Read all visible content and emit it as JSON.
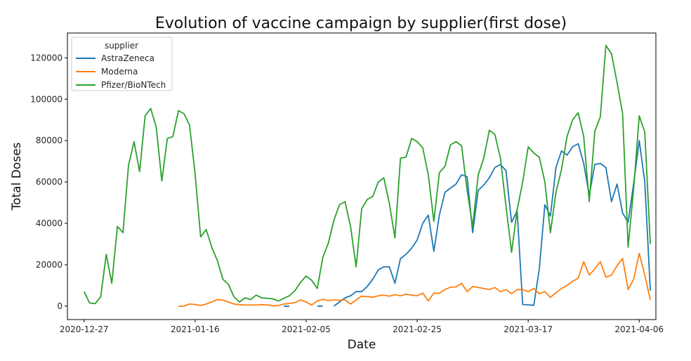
{
  "chart_data": {
    "type": "line",
    "title": "Evolution of vaccine campaign by supplier(first dose)",
    "xlabel": "Date",
    "ylabel": "Total Doses",
    "ylim": [
      -6500,
      132000
    ],
    "xlim": [
      "2020-12-24",
      "2021-04-09"
    ],
    "x_ticks": [
      "2020-12-27",
      "2021-01-16",
      "2021-02-05",
      "2021-02-25",
      "2021-03-17",
      "2021-04-06"
    ],
    "y_ticks": [
      0,
      20000,
      40000,
      60000,
      80000,
      100000,
      120000
    ],
    "grid": false,
    "legend": {
      "title": "supplier",
      "placement": "top-left"
    },
    "series": [
      {
        "name": "AstraZeneca",
        "color": "#1f77b4",
        "points": [
          [
            "2021-02-01",
            0
          ],
          [
            "2021-02-02",
            0
          ],
          [
            "2021-02-07",
            0
          ],
          [
            "2021-02-08",
            0
          ],
          [
            "2021-02-10",
            0
          ],
          [
            "2021-02-11",
            2000
          ],
          [
            "2021-02-12",
            4000
          ],
          [
            "2021-02-13",
            5000
          ],
          [
            "2021-02-14",
            7000
          ],
          [
            "2021-02-15",
            7000
          ],
          [
            "2021-02-16",
            9500
          ],
          [
            "2021-02-17",
            13000
          ],
          [
            "2021-02-18",
            17500
          ],
          [
            "2021-02-19",
            19000
          ],
          [
            "2021-02-20",
            19000
          ],
          [
            "2021-02-21",
            11000
          ],
          [
            "2021-02-22",
            23000
          ],
          [
            "2021-02-23",
            25000
          ],
          [
            "2021-02-24",
            28000
          ],
          [
            "2021-02-25",
            32000
          ],
          [
            "2021-02-26",
            40000
          ],
          [
            "2021-02-27",
            44000
          ],
          [
            "2021-02-28",
            26500
          ],
          [
            "2021-03-01",
            44000
          ],
          [
            "2021-03-02",
            55000
          ],
          [
            "2021-03-03",
            57000
          ],
          [
            "2021-03-04",
            59000
          ],
          [
            "2021-03-05",
            63500
          ],
          [
            "2021-03-06",
            62500
          ],
          [
            "2021-03-07",
            35500
          ],
          [
            "2021-03-08",
            56000
          ],
          [
            "2021-03-09",
            58500
          ],
          [
            "2021-03-10",
            62000
          ],
          [
            "2021-03-11",
            67000
          ],
          [
            "2021-03-12",
            68500
          ],
          [
            "2021-03-13",
            65500
          ],
          [
            "2021-03-14",
            40500
          ],
          [
            "2021-03-15",
            46000
          ],
          [
            "2021-03-16",
            800
          ],
          [
            "2021-03-17",
            600
          ],
          [
            "2021-03-18",
            400
          ],
          [
            "2021-03-19",
            18000
          ],
          [
            "2021-03-20",
            49000
          ],
          [
            "2021-03-21",
            43500
          ],
          [
            "2021-03-22",
            67000
          ],
          [
            "2021-03-23",
            75000
          ],
          [
            "2021-03-24",
            73000
          ],
          [
            "2021-03-25",
            77000
          ],
          [
            "2021-03-26",
            78500
          ],
          [
            "2021-03-27",
            69000
          ],
          [
            "2021-03-28",
            53500
          ],
          [
            "2021-03-29",
            68500
          ],
          [
            "2021-03-30",
            69000
          ],
          [
            "2021-03-31",
            67000
          ],
          [
            "2021-04-01",
            50500
          ],
          [
            "2021-04-02",
            59000
          ],
          [
            "2021-04-03",
            45000
          ],
          [
            "2021-04-04",
            40500
          ],
          [
            "2021-04-05",
            59500
          ],
          [
            "2021-04-06",
            80000
          ],
          [
            "2021-04-07",
            60000
          ],
          [
            "2021-04-08",
            7500
          ]
        ]
      },
      {
        "name": "Moderna",
        "color": "#ff7f0e",
        "points": [
          [
            "2021-01-13",
            0
          ],
          [
            "2021-01-14",
            0
          ],
          [
            "2021-01-15",
            1000
          ],
          [
            "2021-01-16",
            800
          ],
          [
            "2021-01-17",
            300
          ],
          [
            "2021-01-18",
            1000
          ],
          [
            "2021-01-19",
            2000
          ],
          [
            "2021-01-20",
            3200
          ],
          [
            "2021-01-21",
            2900
          ],
          [
            "2021-01-22",
            2000
          ],
          [
            "2021-01-23",
            1000
          ],
          [
            "2021-01-24",
            700
          ],
          [
            "2021-01-25",
            500
          ],
          [
            "2021-01-26",
            600
          ],
          [
            "2021-01-27",
            500
          ],
          [
            "2021-01-28",
            700
          ],
          [
            "2021-01-29",
            600
          ],
          [
            "2021-01-30",
            200
          ],
          [
            "2021-01-31",
            300
          ],
          [
            "2021-02-01",
            1000
          ],
          [
            "2021-02-02",
            1300
          ],
          [
            "2021-02-03",
            1700
          ],
          [
            "2021-02-04",
            3000
          ],
          [
            "2021-02-05",
            2000
          ],
          [
            "2021-02-06",
            500
          ],
          [
            "2021-02-07",
            2500
          ],
          [
            "2021-02-08",
            3300
          ],
          [
            "2021-02-09",
            2700
          ],
          [
            "2021-02-10",
            3000
          ],
          [
            "2021-02-11",
            2800
          ],
          [
            "2021-02-12",
            3000
          ],
          [
            "2021-02-13",
            1000
          ],
          [
            "2021-02-14",
            3000
          ],
          [
            "2021-02-15",
            4800
          ],
          [
            "2021-02-16",
            4600
          ],
          [
            "2021-02-17",
            4300
          ],
          [
            "2021-02-18",
            5000
          ],
          [
            "2021-02-19",
            5300
          ],
          [
            "2021-02-20",
            4800
          ],
          [
            "2021-02-21",
            5500
          ],
          [
            "2021-02-22",
            5000
          ],
          [
            "2021-02-23",
            5800
          ],
          [
            "2021-02-24",
            5300
          ],
          [
            "2021-02-25",
            5000
          ],
          [
            "2021-02-26",
            6300
          ],
          [
            "2021-02-27",
            2500
          ],
          [
            "2021-02-28",
            6300
          ],
          [
            "2021-03-01",
            6200
          ],
          [
            "2021-03-02",
            8000
          ],
          [
            "2021-03-03",
            9200
          ],
          [
            "2021-03-04",
            9300
          ],
          [
            "2021-03-05",
            11000
          ],
          [
            "2021-03-06",
            7000
          ],
          [
            "2021-03-07",
            9500
          ],
          [
            "2021-03-08",
            9000
          ],
          [
            "2021-03-09",
            8500
          ],
          [
            "2021-03-10",
            8000
          ],
          [
            "2021-03-11",
            9000
          ],
          [
            "2021-03-12",
            7000
          ],
          [
            "2021-03-13",
            8000
          ],
          [
            "2021-03-14",
            6000
          ],
          [
            "2021-03-15",
            8000
          ],
          [
            "2021-03-16",
            8000
          ],
          [
            "2021-03-17",
            7000
          ],
          [
            "2021-03-18",
            8500
          ],
          [
            "2021-03-19",
            6000
          ],
          [
            "2021-03-20",
            7000
          ],
          [
            "2021-03-21",
            4200
          ],
          [
            "2021-03-22",
            6500
          ],
          [
            "2021-03-23",
            8500
          ],
          [
            "2021-03-24",
            10000
          ],
          [
            "2021-03-25",
            12000
          ],
          [
            "2021-03-26",
            13500
          ],
          [
            "2021-03-27",
            21500
          ],
          [
            "2021-03-28",
            15000
          ],
          [
            "2021-03-29",
            18000
          ],
          [
            "2021-03-30",
            21500
          ],
          [
            "2021-03-31",
            14000
          ],
          [
            "2021-04-01",
            15000
          ],
          [
            "2021-04-02",
            19500
          ],
          [
            "2021-04-03",
            23000
          ],
          [
            "2021-04-04",
            8000
          ],
          [
            "2021-04-05",
            13000
          ],
          [
            "2021-04-06",
            25500
          ],
          [
            "2021-04-07",
            15000
          ],
          [
            "2021-04-08",
            3000
          ]
        ]
      },
      {
        "name": "Pfizer/BioNTech",
        "color": "#2ca02c",
        "points": [
          [
            "2020-12-27",
            7000
          ],
          [
            "2020-12-28",
            1500
          ],
          [
            "2020-12-29",
            1200
          ],
          [
            "2020-12-30",
            4500
          ],
          [
            "2020-12-31",
            25000
          ],
          [
            "2021-01-01",
            11000
          ],
          [
            "2021-01-02",
            38500
          ],
          [
            "2021-01-03",
            35500
          ],
          [
            "2021-01-04",
            68000
          ],
          [
            "2021-01-05",
            79500
          ],
          [
            "2021-01-06",
            65000
          ],
          [
            "2021-01-07",
            92000
          ],
          [
            "2021-01-08",
            95500
          ],
          [
            "2021-01-09",
            86500
          ],
          [
            "2021-01-10",
            60500
          ],
          [
            "2021-01-11",
            81000
          ],
          [
            "2021-01-12",
            82000
          ],
          [
            "2021-01-13",
            94500
          ],
          [
            "2021-01-14",
            93000
          ],
          [
            "2021-01-15",
            87500
          ],
          [
            "2021-01-16",
            64000
          ],
          [
            "2021-01-17",
            33500
          ],
          [
            "2021-01-18",
            37000
          ],
          [
            "2021-01-19",
            28500
          ],
          [
            "2021-01-20",
            22000
          ],
          [
            "2021-01-21",
            13000
          ],
          [
            "2021-01-22",
            10500
          ],
          [
            "2021-01-23",
            4500
          ],
          [
            "2021-01-24",
            2000
          ],
          [
            "2021-01-25",
            4000
          ],
          [
            "2021-01-26",
            3200
          ],
          [
            "2021-01-27",
            5300
          ],
          [
            "2021-01-28",
            4000
          ],
          [
            "2021-01-29",
            3800
          ],
          [
            "2021-01-30",
            3500
          ],
          [
            "2021-01-31",
            2500
          ],
          [
            "2021-02-01",
            3800
          ],
          [
            "2021-02-02",
            5000
          ],
          [
            "2021-02-03",
            7500
          ],
          [
            "2021-02-04",
            11500
          ],
          [
            "2021-02-05",
            14500
          ],
          [
            "2021-02-06",
            12500
          ],
          [
            "2021-02-07",
            8500
          ],
          [
            "2021-02-08",
            23500
          ],
          [
            "2021-02-09",
            30500
          ],
          [
            "2021-02-10",
            41500
          ],
          [
            "2021-02-11",
            49000
          ],
          [
            "2021-02-12",
            50500
          ],
          [
            "2021-02-13",
            38500
          ],
          [
            "2021-02-14",
            19000
          ],
          [
            "2021-02-15",
            47000
          ],
          [
            "2021-02-16",
            51500
          ],
          [
            "2021-02-17",
            53000
          ],
          [
            "2021-02-18",
            60000
          ],
          [
            "2021-02-19",
            62000
          ],
          [
            "2021-02-20",
            49500
          ],
          [
            "2021-02-21",
            33000
          ],
          [
            "2021-02-22",
            71500
          ],
          [
            "2021-02-23",
            72000
          ],
          [
            "2021-02-24",
            81000
          ],
          [
            "2021-02-25",
            79500
          ],
          [
            "2021-02-26",
            76500
          ],
          [
            "2021-02-27",
            63500
          ],
          [
            "2021-02-28",
            41000
          ],
          [
            "2021-03-01",
            64500
          ],
          [
            "2021-03-02",
            67500
          ],
          [
            "2021-03-03",
            78000
          ],
          [
            "2021-03-04",
            79500
          ],
          [
            "2021-03-05",
            77500
          ],
          [
            "2021-03-06",
            56000
          ],
          [
            "2021-03-07",
            38500
          ],
          [
            "2021-03-08",
            63500
          ],
          [
            "2021-03-09",
            71500
          ],
          [
            "2021-03-10",
            85000
          ],
          [
            "2021-03-11",
            83000
          ],
          [
            "2021-03-12",
            71500
          ],
          [
            "2021-03-13",
            48500
          ],
          [
            "2021-03-14",
            26000
          ],
          [
            "2021-03-15",
            46500
          ],
          [
            "2021-03-16",
            60000
          ],
          [
            "2021-03-17",
            77000
          ],
          [
            "2021-03-18",
            74000
          ],
          [
            "2021-03-19",
            72000
          ],
          [
            "2021-03-20",
            60000
          ],
          [
            "2021-03-21",
            35500
          ],
          [
            "2021-03-22",
            55000
          ],
          [
            "2021-03-23",
            66000
          ],
          [
            "2021-03-24",
            82000
          ],
          [
            "2021-03-25",
            90000
          ],
          [
            "2021-03-26",
            93500
          ],
          [
            "2021-03-27",
            82000
          ],
          [
            "2021-03-28",
            50500
          ],
          [
            "2021-03-29",
            84500
          ],
          [
            "2021-03-30",
            91500
          ],
          [
            "2021-03-31",
            126000
          ],
          [
            "2021-04-01",
            122000
          ],
          [
            "2021-04-02",
            108000
          ],
          [
            "2021-04-03",
            93000
          ],
          [
            "2021-04-04",
            28500
          ],
          [
            "2021-04-05",
            57000
          ],
          [
            "2021-04-06",
            92000
          ],
          [
            "2021-04-07",
            84000
          ],
          [
            "2021-04-08",
            30000
          ]
        ]
      }
    ]
  }
}
